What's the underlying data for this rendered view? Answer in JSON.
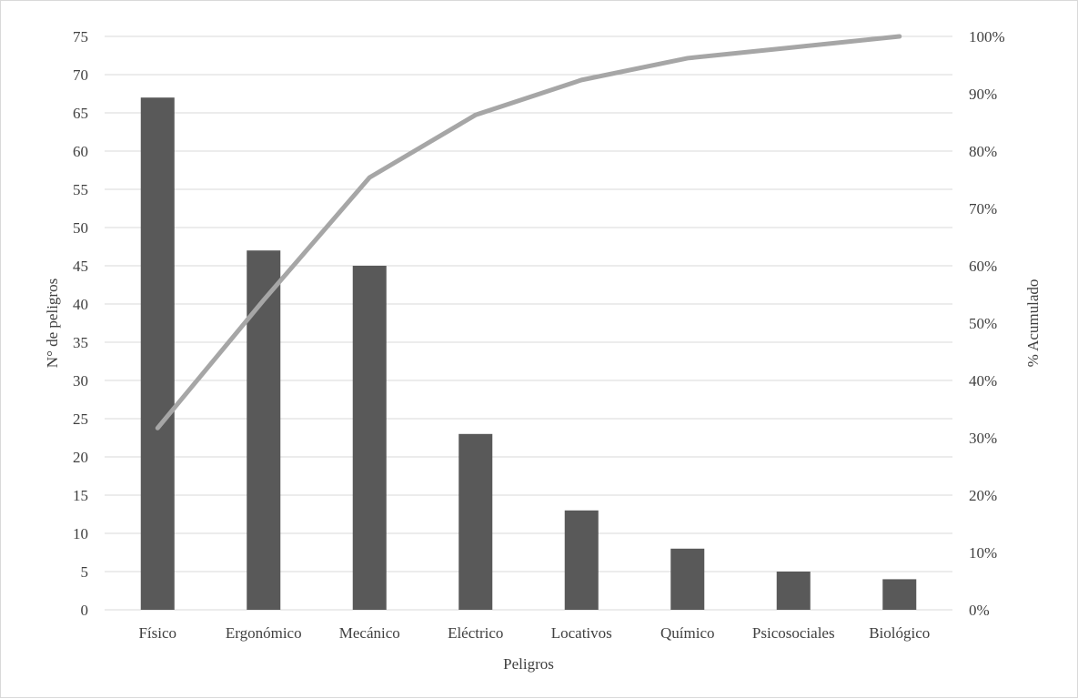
{
  "chart_data": {
    "type": "bar",
    "title": "",
    "xlabel": "Peligros",
    "ylabel": "N° de peligros",
    "y2label": "% Acumulado",
    "categories": [
      "Físico",
      "Ergonómico",
      "Mecánico",
      "Eléctrico",
      "Locativos",
      "Químico",
      "Psicosociales",
      "Biológico"
    ],
    "series": [
      {
        "type": "bar",
        "axis": "left",
        "color": "#595959",
        "values": [
          67,
          47,
          45,
          23,
          13,
          8,
          5,
          4
        ]
      },
      {
        "type": "line",
        "axis": "right",
        "color": "#a6a6a6",
        "values": [
          31.7,
          54.0,
          75.4,
          86.3,
          92.4,
          96.2,
          98.1,
          100.0
        ]
      }
    ],
    "ylim": [
      0,
      75
    ],
    "yticks": [
      "0",
      "5",
      "10",
      "15",
      "20",
      "25",
      "30",
      "35",
      "40",
      "45",
      "50",
      "55",
      "60",
      "65",
      "70",
      "75"
    ],
    "y2lim": [
      0,
      100
    ],
    "y2ticks": [
      "0%",
      "10%",
      "20%",
      "30%",
      "40%",
      "50%",
      "60%",
      "70%",
      "80%",
      "90%",
      "100%"
    ],
    "grid": true,
    "legend": "none"
  }
}
